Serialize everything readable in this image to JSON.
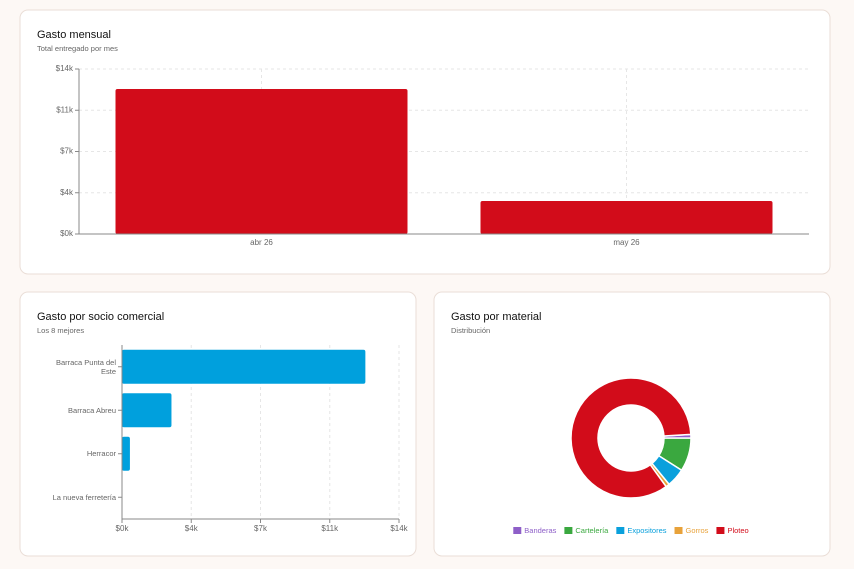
{
  "chart_data": [
    {
      "type": "bar",
      "title": "Gasto mensual",
      "subtitle": "Total entregado por mes",
      "categories": [
        "abr 26",
        "may 26"
      ],
      "values": [
        12300,
        2800
      ],
      "color": "#d20c1a",
      "ylim": [
        0,
        14000
      ],
      "yticks": [
        {
          "value": 0,
          "label": "$0k"
        },
        {
          "value": 3500,
          "label": "$4k"
        },
        {
          "value": 7000,
          "label": "$7k"
        },
        {
          "value": 10500,
          "label": "$11k"
        },
        {
          "value": 14000,
          "label": "$14k"
        }
      ],
      "grid": true
    },
    {
      "type": "hbar",
      "title": "Gasto por socio comercial",
      "subtitle": "Los 8 mejores",
      "categories": [
        "Barraca Punta del Este",
        "Barraca Abreu",
        "Herracor",
        "La nueva ferretería"
      ],
      "values": [
        12300,
        2500,
        400,
        0
      ],
      "color": "#00a0dd",
      "xlim": [
        0,
        14000
      ],
      "xticks": [
        {
          "value": 0,
          "label": "$0k"
        },
        {
          "value": 3500,
          "label": "$4k"
        },
        {
          "value": 7000,
          "label": "$7k"
        },
        {
          "value": 10500,
          "label": "$11k"
        },
        {
          "value": 14000,
          "label": "$14k"
        }
      ],
      "grid": true
    },
    {
      "type": "donut",
      "title": "Gasto por material",
      "subtitle": "Distribución",
      "categories": [
        "Banderas",
        "Cartelería",
        "Expositores",
        "Gorros",
        "Ploteo"
      ],
      "values": [
        1,
        9,
        5,
        1,
        84
      ],
      "colors": [
        "#8e5fc8",
        "#3aa83f",
        "#0aa0dc",
        "#e8a23a",
        "#d20c1a"
      ]
    }
  ]
}
